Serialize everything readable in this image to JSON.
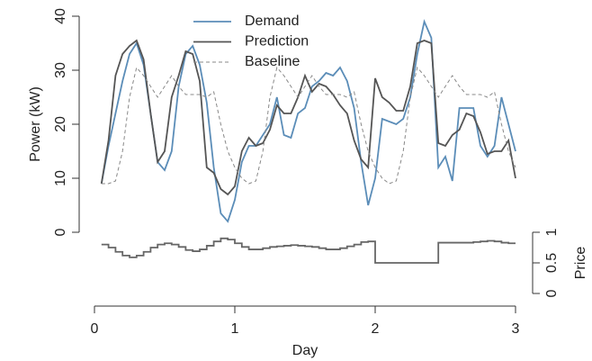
{
  "chart_data": {
    "type": "line",
    "xlabel": "Day",
    "ylabel": "Power (kW)",
    "x": [
      0.05,
      0.1,
      0.15,
      0.2,
      0.25,
      0.3,
      0.35,
      0.4,
      0.45,
      0.5,
      0.55,
      0.6,
      0.65,
      0.7,
      0.75,
      0.8,
      0.85,
      0.9,
      0.95,
      1.0,
      1.05,
      1.1,
      1.15,
      1.2,
      1.25,
      1.3,
      1.35,
      1.4,
      1.45,
      1.5,
      1.55,
      1.6,
      1.65,
      1.7,
      1.75,
      1.8,
      1.85,
      1.9,
      1.95,
      2.0,
      2.05,
      2.1,
      2.15,
      2.2,
      2.25,
      2.3,
      2.35,
      2.4,
      2.45,
      2.5,
      2.55,
      2.6,
      2.65,
      2.7,
      2.75,
      2.8,
      2.85,
      2.9,
      2.95,
      3.0
    ],
    "series": [
      {
        "name": "Demand",
        "color": "#5b8db8",
        "linestyle": "solid",
        "values": [
          9,
          16,
          22,
          28,
          33,
          35,
          31,
          22,
          13,
          11.5,
          15,
          27,
          33,
          34.5,
          31,
          24,
          12,
          3.5,
          2,
          6,
          13,
          16,
          16,
          18,
          20,
          25,
          18,
          17.5,
          22,
          23,
          27,
          28,
          29.5,
          29,
          30.5,
          28,
          23,
          13,
          5,
          10,
          21,
          20.5,
          20,
          21,
          25,
          33,
          39,
          36,
          12,
          14,
          9.5,
          23,
          23,
          23,
          16,
          14,
          16,
          25,
          20,
          15
        ]
      },
      {
        "name": "Prediction",
        "color": "#555555",
        "linestyle": "solid",
        "values": [
          9,
          17,
          29,
          33,
          34.5,
          35.5,
          32,
          22,
          13,
          15,
          25,
          29,
          33.5,
          33,
          28,
          12,
          11,
          8,
          7,
          8.5,
          15,
          17.5,
          16,
          16.5,
          19,
          23.5,
          22,
          22,
          25,
          29,
          26,
          27.5,
          27,
          25.5,
          23.5,
          22,
          17,
          13.5,
          12,
          28.5,
          25,
          24,
          22.5,
          22.5,
          27,
          35,
          35.5,
          35,
          16.5,
          16,
          18,
          19,
          22,
          21.5,
          18.5,
          14.5,
          15,
          15,
          17,
          10
        ]
      },
      {
        "name": "Baseline",
        "color": "#888888",
        "linestyle": "dashed",
        "values": [
          9,
          9,
          9.5,
          15,
          25,
          30.5,
          29,
          27,
          25,
          27,
          29,
          27,
          25.5,
          25.5,
          25.5,
          25,
          26,
          20,
          15,
          12,
          10,
          9,
          9.5,
          15,
          25,
          30.5,
          29,
          27,
          25,
          27,
          29,
          27,
          25.5,
          25.5,
          25.5,
          25,
          26,
          20,
          15,
          12,
          10,
          9,
          9.5,
          15,
          25,
          30.5,
          29,
          27,
          25,
          27,
          29,
          27,
          25.5,
          25.5,
          25.5,
          25,
          26,
          20,
          15,
          12
        ]
      },
      {
        "name": "Price",
        "color": "#666666",
        "linestyle": "step",
        "axis": "y2",
        "values": [
          0.8,
          0.75,
          0.68,
          0.62,
          0.59,
          0.62,
          0.68,
          0.75,
          0.8,
          0.82,
          0.8,
          0.76,
          0.71,
          0.69,
          0.72,
          0.78,
          0.85,
          0.9,
          0.88,
          0.82,
          0.76,
          0.72,
          0.72,
          0.74,
          0.76,
          0.77,
          0.78,
          0.79,
          0.78,
          0.77,
          0.76,
          0.74,
          0.72,
          0.72,
          0.74,
          0.77,
          0.8,
          0.84,
          0.85,
          0.5,
          0.5,
          0.5,
          0.5,
          0.5,
          0.5,
          0.5,
          0.5,
          0.5,
          0.83,
          0.83,
          0.83,
          0.83,
          0.83,
          0.84,
          0.85,
          0.86,
          0.85,
          0.83,
          0.82,
          0.82
        ]
      }
    ],
    "xlim": [
      0,
      3
    ],
    "xticks": [
      0,
      1,
      2,
      3
    ],
    "ylim": [
      0,
      40
    ],
    "yticks": [
      0,
      10,
      20,
      30,
      40
    ],
    "y2lim": [
      0,
      1
    ],
    "y2ticks": [
      0,
      0.5,
      1
    ],
    "legend": "top"
  }
}
